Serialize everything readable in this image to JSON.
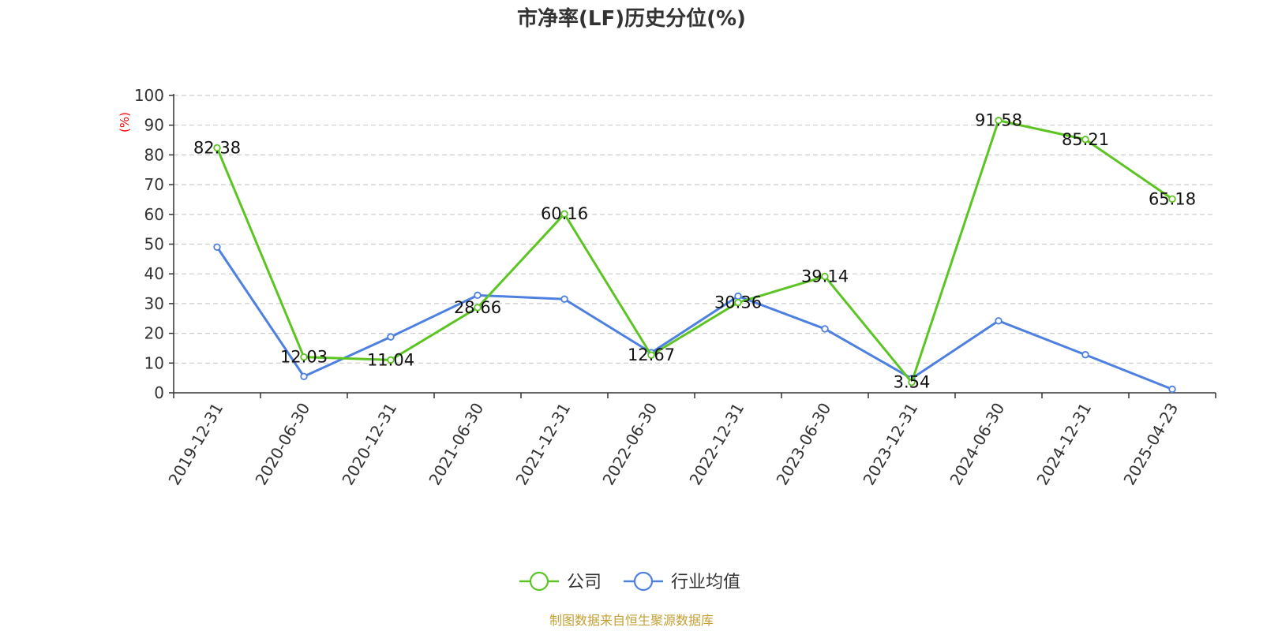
{
  "chart_data": {
    "type": "line",
    "title": "市净率(LF)历史分位(%)",
    "ylabel": "(%)",
    "ylabel_color": "#ff0000",
    "ylim": [
      0,
      100
    ],
    "yticks": [
      "0",
      "10",
      "20",
      "30",
      "40",
      "50",
      "60",
      "70",
      "80",
      "90",
      "100"
    ],
    "categories": [
      "2019-12-31",
      "2020-06-30",
      "2020-12-31",
      "2021-06-30",
      "2021-12-31",
      "2022-06-30",
      "2022-12-31",
      "2023-06-30",
      "2023-12-31",
      "2024-06-30",
      "2024-12-31",
      "2025-04-23"
    ],
    "grid": "horizontal-dashed",
    "legend_position": "bottom-center",
    "series": [
      {
        "name": "公司",
        "color": "#5cc523",
        "values": [
          82.38,
          12.03,
          11.04,
          28.66,
          60.16,
          12.67,
          30.36,
          39.14,
          3.54,
          91.58,
          85.21,
          65.18
        ],
        "labels": [
          "82.38",
          "12.03",
          "11.04",
          "28.66",
          "60.16",
          "12.67",
          "30.36",
          "39.14",
          "3.54",
          "91.58",
          "85.21",
          "65.18"
        ]
      },
      {
        "name": "行业均值",
        "color": "#4e80e0",
        "values": [
          49,
          5.5,
          18.8,
          32.8,
          31.5,
          13.5,
          32.5,
          21.5,
          4.8,
          24.2,
          12.8,
          1.2
        ]
      }
    ],
    "source": "制图数据来自恒生聚源数据库",
    "source_color": "#c4a035"
  }
}
